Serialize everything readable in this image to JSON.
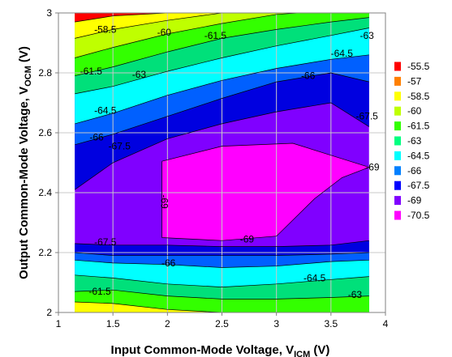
{
  "chart_data": {
    "type": "heatmap",
    "subtype": "filled-contour",
    "title": "",
    "xlabel": {
      "main": "Input Common-Mode Voltage, V",
      "sub": "ICM",
      "unit": " (V)"
    },
    "ylabel": {
      "main": "Output Common-Mode Voltage, V",
      "sub": "OCM",
      "unit": " (V)"
    },
    "xlim": [
      1,
      4
    ],
    "ylim": [
      2,
      3
    ],
    "x_ticks": [
      "1",
      "1.5",
      "2",
      "2.5",
      "3",
      "3.5",
      "4"
    ],
    "y_ticks": [
      "2",
      "2.2",
      "2.4",
      "2.6",
      "2.8",
      "3"
    ],
    "data_x_range": [
      1.15,
      3.85
    ],
    "grid": true,
    "legend_position": "right",
    "levels": [
      "-55.5",
      "-57",
      "-58.5",
      "-60",
      "-61.5",
      "-63",
      "-64.5",
      "-66",
      "-67.5",
      "-69",
      "-70.5"
    ],
    "level_colors": [
      "#ff0000",
      "#ff8000",
      "#ffff00",
      "#bfff00",
      "#33ff00",
      "#00ff80",
      "#00ffff",
      "#0080ff",
      "#0000ff",
      "#8000ff",
      "#ff00ff"
    ],
    "band_colors": [
      "#ff0000",
      "#ff8000",
      "#ffff00",
      "#bfff00",
      "#33ff00",
      "#00e07a",
      "#00ffff",
      "#0060ff",
      "#0000e0",
      "#8000ff",
      "#ff00ff"
    ],
    "contour_lines": [
      {
        "level": -57,
        "points": [
          [
            1.15,
            2.97
          ],
          [
            1.5,
            2.99
          ],
          [
            2,
            3.0
          ]
        ]
      },
      {
        "level": -58.5,
        "points": [
          [
            1.15,
            2.915
          ],
          [
            1.5,
            2.945
          ],
          [
            2,
            2.975
          ],
          [
            2.5,
            3.0
          ]
        ]
      },
      {
        "level": -60,
        "points": [
          [
            1.15,
            2.85
          ],
          [
            1.5,
            2.885
          ],
          [
            2,
            2.93
          ],
          [
            2.5,
            2.965
          ],
          [
            3,
            2.995
          ],
          [
            3.2,
            3.0
          ]
        ]
      },
      {
        "level": -61.5,
        "points": [
          [
            1.15,
            2.79
          ],
          [
            1.5,
            2.82
          ],
          [
            2,
            2.87
          ],
          [
            2.5,
            2.915
          ],
          [
            3,
            2.945
          ],
          [
            3.5,
            2.97
          ],
          [
            3.85,
            2.985
          ]
        ]
      },
      {
        "level": -63,
        "points": [
          [
            1.15,
            2.73
          ],
          [
            1.5,
            2.755
          ],
          [
            2,
            2.805
          ],
          [
            2.5,
            2.85
          ],
          [
            3,
            2.89
          ],
          [
            3.5,
            2.925
          ],
          [
            3.85,
            2.95
          ]
        ]
      },
      {
        "level": -64.5,
        "points": [
          [
            1.15,
            2.63
          ],
          [
            1.5,
            2.665
          ],
          [
            2,
            2.725
          ],
          [
            2.5,
            2.775
          ],
          [
            3,
            2.815
          ],
          [
            3.5,
            2.845
          ],
          [
            3.85,
            2.86
          ]
        ]
      },
      {
        "level": -66,
        "points": [
          [
            1.15,
            2.56
          ],
          [
            1.5,
            2.595
          ],
          [
            2,
            2.655
          ],
          [
            2.5,
            2.715
          ],
          [
            3,
            2.77
          ],
          [
            3.5,
            2.8
          ],
          [
            3.85,
            2.77
          ]
        ]
      },
      {
        "level": -67.5,
        "points": [
          [
            1.15,
            2.41
          ],
          [
            1.5,
            2.5
          ],
          [
            2,
            2.58
          ],
          [
            2.5,
            2.63
          ],
          [
            3,
            2.67
          ],
          [
            3.5,
            2.7
          ],
          [
            3.85,
            2.62
          ]
        ]
      },
      {
        "level": -69,
        "points": [
          [
            1.95,
            2.505
          ],
          [
            2.5,
            2.555
          ],
          [
            3.15,
            2.565
          ],
          [
            3.5,
            2.525
          ],
          [
            3.85,
            2.485
          ],
          [
            3.6,
            2.45
          ],
          [
            3.35,
            2.38
          ],
          [
            3.0,
            2.255
          ],
          [
            2.5,
            2.24
          ],
          [
            1.95,
            2.25
          ],
          [
            1.95,
            2.505
          ]
        ]
      },
      {
        "level": -67.5,
        "points": [
          [
            1.15,
            2.23
          ],
          [
            1.5,
            2.225
          ],
          [
            2,
            2.225
          ],
          [
            2.5,
            2.22
          ],
          [
            3,
            2.22
          ],
          [
            3.5,
            2.225
          ],
          [
            3.85,
            2.24
          ]
        ]
      },
      {
        "level": -66,
        "points": [
          [
            1.15,
            2.2
          ],
          [
            1.5,
            2.19
          ],
          [
            2,
            2.19
          ],
          [
            2.5,
            2.19
          ],
          [
            3,
            2.19
          ],
          [
            3.5,
            2.195
          ],
          [
            3.85,
            2.2
          ]
        ]
      },
      {
        "level": -64.5,
        "points": [
          [
            1.15,
            2.175
          ],
          [
            1.5,
            2.165
          ],
          [
            2,
            2.16
          ],
          [
            2.5,
            2.15
          ],
          [
            3,
            2.155
          ],
          [
            3.5,
            2.17
          ],
          [
            3.85,
            2.175
          ]
        ]
      },
      {
        "level": -63,
        "points": [
          [
            1.15,
            2.125
          ],
          [
            1.5,
            2.115
          ],
          [
            2,
            2.095
          ],
          [
            2.5,
            2.085
          ],
          [
            3,
            2.095
          ],
          [
            3.5,
            2.11
          ],
          [
            3.85,
            2.12
          ]
        ]
      },
      {
        "level": -61.5,
        "points": [
          [
            1.15,
            2.07
          ],
          [
            1.5,
            2.075
          ],
          [
            2,
            2.055
          ],
          [
            2.5,
            2.045
          ],
          [
            3,
            2.045
          ],
          [
            3.5,
            2.05
          ],
          [
            3.85,
            2.055
          ]
        ]
      },
      {
        "level": -60,
        "points": [
          [
            1.15,
            2.035
          ],
          [
            1.5,
            2.03
          ],
          [
            2,
            2.01
          ],
          [
            2.5,
            2.0
          ]
        ]
      }
    ],
    "contour_labels": [
      {
        "text": "-58.5",
        "x": 1.43,
        "y": 2.945
      },
      {
        "text": "-60",
        "x": 1.97,
        "y": 2.935
      },
      {
        "text": "-61.5",
        "x": 2.44,
        "y": 2.925
      },
      {
        "text": "-63",
        "x": 3.83,
        "y": 2.925
      },
      {
        "text": "-61.5",
        "x": 1.3,
        "y": 2.805
      },
      {
        "text": "-63",
        "x": 1.74,
        "y": 2.795
      },
      {
        "text": "-64.5",
        "x": 3.6,
        "y": 2.865
      },
      {
        "text": "-66",
        "x": 3.29,
        "y": 2.79
      },
      {
        "text": "-64.5",
        "x": 1.43,
        "y": 2.675
      },
      {
        "text": "-66",
        "x": 1.35,
        "y": 2.585
      },
      {
        "text": "-67.5",
        "x": 3.83,
        "y": 2.655
      },
      {
        "text": "-67.5",
        "x": 1.56,
        "y": 2.555
      },
      {
        "text": "-69",
        "x": 3.88,
        "y": 2.485
      },
      {
        "text": "-69",
        "x": 1.97,
        "y": 2.37,
        "rotate": 90
      },
      {
        "text": "-67.5",
        "x": 1.43,
        "y": 2.235
      },
      {
        "text": "-69",
        "x": 2.73,
        "y": 2.245
      },
      {
        "text": "-66",
        "x": 2.01,
        "y": 2.165
      },
      {
        "text": "-64.5",
        "x": 3.35,
        "y": 2.115
      },
      {
        "text": "-61.5",
        "x": 1.38,
        "y": 2.07
      },
      {
        "text": "-63",
        "x": 3.72,
        "y": 2.06
      }
    ]
  }
}
